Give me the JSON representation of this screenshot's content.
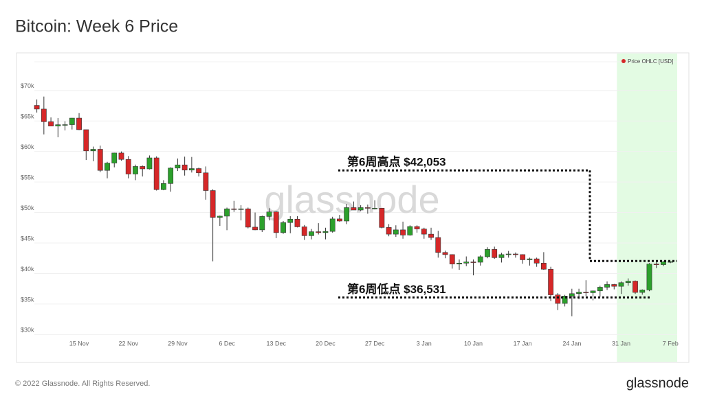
{
  "chart_data": {
    "type": "candlestick",
    "title": "Bitcoin: Week 6 Price",
    "categories": [
      null,
      null,
      null,
      null,
      null,
      null,
      "15 Nov",
      null,
      null,
      null,
      null,
      null,
      null,
      "22 Nov",
      null,
      null,
      null,
      null,
      null,
      null,
      "29 Nov",
      null,
      null,
      null,
      null,
      null,
      null,
      "6 Dec",
      null,
      null,
      null,
      null,
      null,
      null,
      "13 Dec",
      null,
      null,
      null,
      null,
      null,
      null,
      "20 Dec",
      null,
      null,
      null,
      null,
      null,
      null,
      "27 Dec",
      null,
      null,
      null,
      null,
      null,
      null,
      "3 Jan",
      null,
      null,
      null,
      null,
      null,
      null,
      "10 Jan",
      null,
      null,
      null,
      null,
      null,
      null,
      "17 Jan",
      null,
      null,
      null,
      null,
      null,
      null,
      "24 Jan",
      null,
      null,
      null,
      null,
      null,
      null,
      "31 Jan",
      null,
      null,
      null,
      null,
      null,
      null,
      "7 Feb"
    ],
    "series": [
      {
        "name": "Price OHLC [USD]",
        "color": "#d62728",
        "open": [
          67550,
          66950,
          64880,
          64160,
          64390,
          64400,
          65470,
          63570,
          60100,
          60360,
          56900,
          58100,
          59750,
          58700,
          56300,
          57550,
          57150,
          58950,
          53750,
          54750,
          57280,
          57800,
          56950,
          57200,
          56500,
          53600,
          49200,
          49400,
          50600,
          50500,
          50600,
          47600,
          47150,
          49350,
          50100,
          46700,
          48350,
          48900,
          47650,
          46200,
          46850,
          46700,
          46900,
          48950,
          48600,
          50800,
          50400,
          50800,
          50700,
          50700,
          47550,
          46450,
          47150,
          46300,
          47700,
          47300,
          46450,
          45900,
          43450,
          43100,
          41550,
          41700,
          41900,
          41850,
          42750,
          43950,
          42600,
          43100,
          43200,
          43100,
          42250,
          42400,
          41700,
          40700,
          36500,
          35100,
          36300,
          36700,
          36950,
          36850,
          37150,
          37750,
          38200,
          37900,
          38500,
          38750,
          36900,
          37300,
          41550,
          41450,
          41900
        ],
        "high": [
          68530,
          69000,
          65580,
          65470,
          64950,
          65500,
          66290,
          63570,
          60800,
          60960,
          58300,
          59800,
          60000,
          59250,
          57850,
          57700,
          59350,
          59200,
          55300,
          57400,
          58850,
          59150,
          59100,
          57350,
          57550,
          53800,
          49500,
          50800,
          51900,
          51200,
          50800,
          50000,
          49500,
          50700,
          50200,
          48600,
          49400,
          49400,
          47950,
          47300,
          48250,
          47500,
          49300,
          49600,
          51400,
          51800,
          51200,
          51300,
          52000,
          50700,
          48100,
          47900,
          48500,
          47900,
          47900,
          47500,
          47500,
          47000,
          43750,
          43150,
          42300,
          42800,
          42300,
          43000,
          44300,
          44400,
          43400,
          43700,
          43450,
          43150,
          42600,
          42600,
          43500,
          41100,
          36800,
          36500,
          37500,
          37500,
          38900,
          37200,
          38000,
          38700,
          38300,
          38700,
          39200,
          38850,
          37400,
          41700,
          41900,
          42053,
          42000
        ],
        "low": [
          66380,
          62800,
          64150,
          62330,
          63450,
          63600,
          63500,
          58600,
          58400,
          56600,
          55600,
          57400,
          58500,
          55600,
          55300,
          55900,
          57050,
          53600,
          53650,
          53400,
          56800,
          56050,
          56550,
          55900,
          52100,
          42000,
          47800,
          47100,
          50100,
          48700,
          47400,
          47100,
          46800,
          48700,
          45800,
          46500,
          46600,
          47550,
          45500,
          45600,
          46400,
          45600,
          46700,
          48500,
          48100,
          50500,
          50200,
          49800,
          50500,
          47400,
          46100,
          46000,
          45700,
          46200,
          46700,
          45700,
          45500,
          42600,
          42500,
          40800,
          40600,
          41200,
          39700,
          41300,
          42500,
          42400,
          41800,
          42600,
          42600,
          41600,
          41300,
          41100,
          40600,
          35500,
          34000,
          34600,
          33000,
          35800,
          36300,
          35600,
          36200,
          37300,
          37400,
          36650,
          38000,
          36650,
          36531,
          37100,
          40900,
          41200,
          41700
        ],
        "close": [
          66950,
          64880,
          64160,
          64390,
          64400,
          65470,
          63570,
          60100,
          60360,
          56900,
          58100,
          59750,
          58700,
          56300,
          57550,
          57150,
          58950,
          53750,
          54750,
          57280,
          57800,
          56950,
          57200,
          56500,
          53600,
          49200,
          49400,
          50600,
          50500,
          50600,
          47600,
          47150,
          49350,
          50100,
          46700,
          48350,
          48900,
          47650,
          46200,
          46850,
          46700,
          46900,
          48950,
          48600,
          50800,
          50400,
          50800,
          50700,
          50700,
          47550,
          46450,
          47150,
          46300,
          47700,
          47300,
          46450,
          45900,
          43450,
          43100,
          41550,
          41700,
          41900,
          41850,
          42750,
          43950,
          42600,
          43100,
          43200,
          43100,
          42250,
          42400,
          41700,
          40700,
          36500,
          35100,
          36300,
          36700,
          36950,
          36850,
          37150,
          37750,
          38200,
          37900,
          38500,
          38750,
          36900,
          37300,
          41550,
          41450,
          41900,
          41950
        ]
      }
    ],
    "up_color": "#2ca02c",
    "down_color": "#d62728",
    "ylim": [
      29700,
      74700
    ],
    "yticks": [
      {
        "value": 30000,
        "label": "$30k"
      },
      {
        "value": 35000,
        "label": "$35k"
      },
      {
        "value": 40000,
        "label": "$40k"
      },
      {
        "value": 45000,
        "label": "$45k"
      },
      {
        "value": 50000,
        "label": "$50k"
      },
      {
        "value": 55000,
        "label": "$55k"
      },
      {
        "value": 60000,
        "label": "$60k"
      },
      {
        "value": 65000,
        "label": "$65k"
      },
      {
        "value": 70000,
        "label": "$70k"
      }
    ],
    "grid": true,
    "legend": "top-right",
    "highlight_from": "31 Jan",
    "highlight_color": "#e3fbe3",
    "annotations": [
      {
        "text": "第6周高点 $42,053",
        "value": 42053
      },
      {
        "text": "第6周低点 $36,531",
        "value": 36531
      }
    ],
    "watermark": "glassnode",
    "footer": "© 2022 Glassnode. All Rights Reserved.",
    "logo": "glassnode"
  }
}
